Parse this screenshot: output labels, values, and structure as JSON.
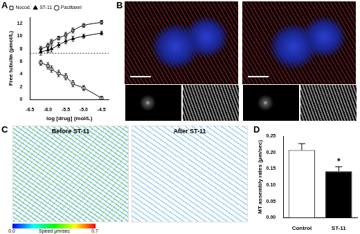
{
  "chart_data": [
    {
      "panel": "A",
      "type": "scatter",
      "x_label": "log [drug] (mol/L)",
      "y_label": "Free tubulin (μmol/L)",
      "xlim": [
        -6.5,
        -4.3
      ],
      "xticks": [
        {
          "value": -6.5,
          "label": "-6.5"
        },
        {
          "value": -6.0,
          "label": "-6.0"
        },
        {
          "value": -5.5,
          "label": "-5.5"
        },
        {
          "value": -5.0,
          "label": "-5.0"
        },
        {
          "value": -4.5,
          "label": "-4.5"
        }
      ],
      "ylim": [
        0,
        13
      ],
      "yticks": [
        0,
        2,
        4,
        6,
        8,
        10,
        12
      ],
      "grid": false,
      "legend": "top left",
      "hline": {
        "value": 7.3,
        "line_style": "dashed"
      },
      "x": [
        -6.2,
        -6.0,
        -5.9,
        -5.7,
        -5.5,
        -5.3,
        -5.0,
        -4.5
      ],
      "series": [
        {
          "name": "Nocod.",
          "color": "#000000",
          "marker": "open square",
          "line_style": "solid",
          "values": [
            8.0,
            8.5,
            9.1,
            9.7,
            10.2,
            10.9,
            11.7,
            12.2
          ],
          "errors": [
            0.4,
            0.4,
            0.4,
            0.3,
            0.4,
            0.4,
            0.3,
            0.3
          ]
        },
        {
          "name": "ST-11",
          "color": "#000000",
          "marker": "filled triangle",
          "line_style": "solid",
          "values": [
            7.5,
            7.8,
            8.0,
            8.6,
            9.2,
            9.6,
            10.0,
            10.5
          ],
          "errors": [
            0.5,
            0.4,
            0.5,
            0.4,
            0.4,
            0.4,
            0.3,
            0.3
          ]
        },
        {
          "name": "Paclitaxel",
          "color": "#000000",
          "marker": "open circle",
          "line_style": "solid",
          "values": [
            5.8,
            5.3,
            4.8,
            4.1,
            3.6,
            2.5,
            1.8,
            0.2
          ],
          "errors": [
            0.4,
            0.5,
            0.5,
            0.5,
            0.5,
            0.5,
            0.4,
            0.3
          ]
        }
      ]
    },
    {
      "panel": "D",
      "type": "bar",
      "y_label": "MT assembly rates (μm/sec)",
      "categories": [
        "Control",
        "ST-11"
      ],
      "values": [
        0.207,
        0.142
      ],
      "errors": [
        0.02,
        0.014
      ],
      "colors": [
        "#ffffff",
        "#000000"
      ],
      "ylim": [
        0,
        0.25
      ],
      "yticks": [
        {
          "value": 0,
          "label": "0.00"
        },
        {
          "value": 0.05,
          "label": "0.05"
        },
        {
          "value": 0.1,
          "label": "0.10"
        },
        {
          "value": 0.15,
          "label": "0.15"
        },
        {
          "value": 0.2,
          "label": "0.20"
        },
        {
          "value": 0.25,
          "label": "0.25"
        }
      ],
      "grid": false,
      "annotations": [
        {
          "text": "*",
          "category": "ST-11"
        }
      ]
    }
  ],
  "images": {
    "B": {
      "panel": "B"
    },
    "C": {
      "panel": "C",
      "left_title": "Before ST-11",
      "right_title": "After ST-11",
      "colorbar": {
        "label": "Speed μm/sec",
        "range": [
          0,
          0.7
        ],
        "ticks": [
          {
            "value": 0,
            "label": "0.0"
          },
          {
            "value": 0.7,
            "label": "0.7"
          }
        ]
      }
    }
  }
}
